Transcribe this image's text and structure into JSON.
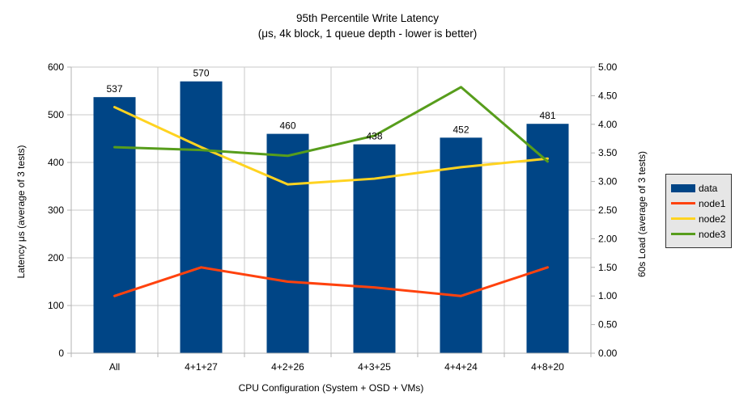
{
  "title": "95th Percentile Write Latency",
  "subtitle": "(μs, 4k block, 1 queue depth - lower is better)",
  "chart_data": {
    "type": "bar+line",
    "categories": [
      "All",
      "4+1+27",
      "4+2+26",
      "4+3+25",
      "4+4+24",
      "4+8+20"
    ],
    "bar_series": {
      "name": "data",
      "axis": "left",
      "color": "#004586",
      "values": [
        537,
        570,
        460,
        438,
        452,
        481
      ],
      "data_labels": [
        "537",
        "570",
        "460",
        "438",
        "452",
        "481"
      ]
    },
    "line_series": [
      {
        "name": "node1",
        "axis": "right",
        "color": "#ff420e",
        "values": [
          1.0,
          1.5,
          1.25,
          1.15,
          1.0,
          1.5
        ]
      },
      {
        "name": "node2",
        "axis": "right",
        "color": "#ffd320",
        "values": [
          4.3,
          3.6,
          2.95,
          3.05,
          3.25,
          3.4
        ]
      },
      {
        "name": "node3",
        "axis": "right",
        "color": "#579d1c",
        "values": [
          3.6,
          3.55,
          3.45,
          3.8,
          4.65,
          3.35
        ]
      }
    ],
    "left_axis": {
      "title": "Latency μs (average of 3 tests)",
      "min": 0,
      "max": 600,
      "step": 100,
      "tick_labels": [
        "0",
        "100",
        "200",
        "300",
        "400",
        "500",
        "600"
      ]
    },
    "right_axis": {
      "title": "60s Load (average of 3 tests)",
      "min": 0,
      "max": 5,
      "step": 0.5,
      "tick_labels": [
        "0.00",
        "0.50",
        "1.00",
        "1.50",
        "2.00",
        "2.50",
        "3.00",
        "3.50",
        "4.00",
        "4.50",
        "5.00"
      ]
    },
    "x_axis": {
      "title": "CPU Configuration (System + OSD + VMs)"
    },
    "legend": {
      "position": "right",
      "entries": [
        {
          "label": "data",
          "color": "#004586",
          "type": "bar"
        },
        {
          "label": "node1",
          "color": "#ff420e",
          "type": "line"
        },
        {
          "label": "node2",
          "color": "#ffd320",
          "type": "line"
        },
        {
          "label": "node3",
          "color": "#579d1c",
          "type": "line"
        }
      ]
    },
    "grid": true,
    "colors": {
      "grid": "#c8c8c8",
      "axis": "#b3b3b3",
      "text": "#000000",
      "legend_bg": "#e6e6e6",
      "legend_border": "#333333",
      "background": "#ffffff"
    }
  }
}
